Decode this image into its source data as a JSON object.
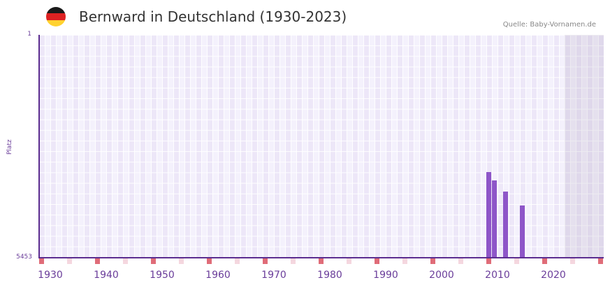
{
  "header": {
    "title": "Bernward in Deutschland (1930-2023)",
    "source": "Quelle: Baby-Vornamen.de",
    "flag_colors": [
      "#1a1a1a",
      "#dd2222",
      "#ffd230"
    ]
  },
  "chart_data": {
    "type": "bar",
    "title": "Bernward in Deutschland (1930-2023)",
    "xlabel": "",
    "ylabel": "Platz",
    "y_inverted": true,
    "ylim": [
      5453,
      1
    ],
    "xlim": [
      1930,
      2030
    ],
    "y_ticks": [
      "1",
      "5453"
    ],
    "x_ticks": [
      "1930",
      "1940",
      "1950",
      "1960",
      "1970",
      "1980",
      "1990",
      "2000",
      "2010",
      "2020"
    ],
    "categories": [
      "2010",
      "2011",
      "2013",
      "2016"
    ],
    "values": [
      3357,
      3562,
      3834,
      4175
    ],
    "grid": true,
    "shaded_region": [
      2024,
      2030
    ],
    "colors": {
      "bar": "#8e56c8",
      "axis": "#5b2c8f",
      "decade_marker": "#e06c78",
      "half_decade_marker": "#f5d7df"
    }
  }
}
